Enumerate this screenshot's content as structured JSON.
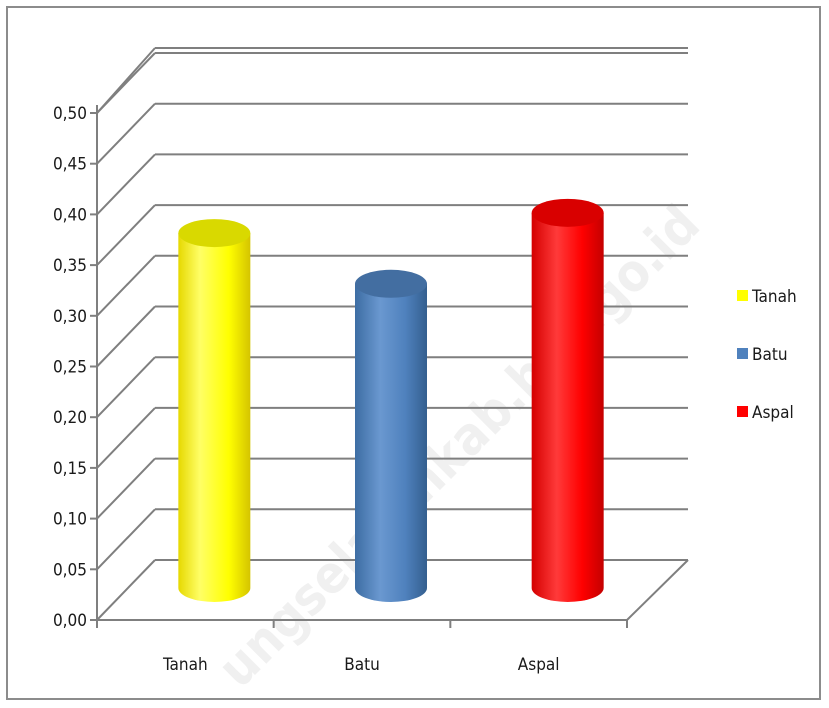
{
  "chart_data": {
    "type": "bar",
    "style": "3d-cylinder",
    "categories": [
      "Tanah",
      "Batu",
      "Aspal"
    ],
    "values": [
      0.35,
      0.3,
      0.37
    ],
    "colors": [
      "#ffff00",
      "#4f81bd",
      "#ff0000"
    ],
    "y_ticks": [
      "0,00",
      "0,05",
      "0,10",
      "0,15",
      "0,20",
      "0,25",
      "0,30",
      "0,35",
      "0,40",
      "0,45",
      "0,50"
    ],
    "ylim": [
      0,
      0.5
    ],
    "title": "",
    "xlabel": "",
    "ylabel": "",
    "grid": true,
    "legend": {
      "position": "right",
      "entries": [
        "Tanah",
        "Batu",
        "Aspal"
      ]
    }
  },
  "watermark": "ungselatankab.bps.go.id"
}
